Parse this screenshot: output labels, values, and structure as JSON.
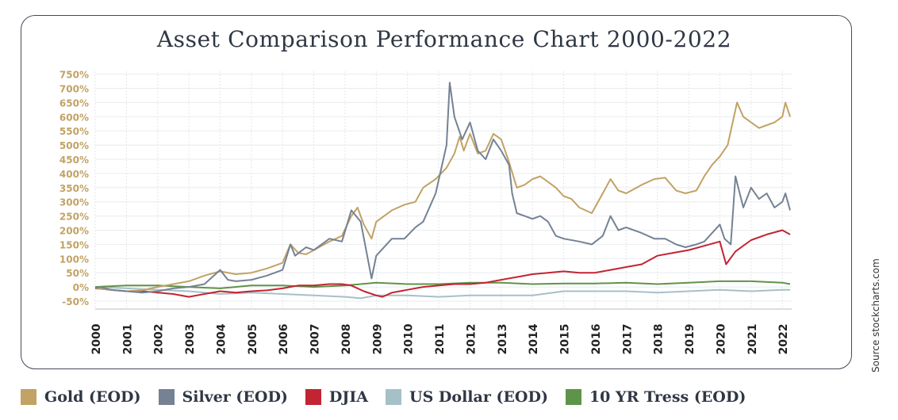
{
  "chart_data": {
    "type": "line",
    "title": "Asset Comparison Performance Chart 2000-2022",
    "source": "Source stockcharts.com",
    "xlabel": "",
    "ylabel": "",
    "xlim": [
      2000,
      2022.3
    ],
    "ylim": [
      -50,
      760
    ],
    "grid": true,
    "legend_position": "bottom",
    "x_ticks": [
      "2000",
      "2001",
      "2002",
      "2003",
      "2004",
      "2005",
      "2006",
      "2007",
      "2008",
      "2009",
      "2010",
      "2011",
      "2012",
      "2013",
      "2014",
      "2015",
      "2016",
      "2017",
      "2018",
      "2019",
      "2020",
      "2021",
      "2022"
    ],
    "y_ticks": [
      "750%",
      "700%",
      "650%",
      "600%",
      "550%",
      "500%",
      "450%",
      "400%",
      "350%",
      "300%",
      "250%",
      "200%",
      "150%",
      "100%",
      "50%",
      "0%",
      "-50%"
    ],
    "y_tick_values": [
      750,
      700,
      650,
      600,
      550,
      500,
      450,
      400,
      350,
      300,
      250,
      200,
      150,
      100,
      50,
      0,
      -50
    ],
    "series": [
      {
        "name": "Gold (EOD)",
        "color": "#c2a265",
        "points": [
          [
            2000,
            -5
          ],
          [
            2000.5,
            -10
          ],
          [
            2001,
            -15
          ],
          [
            2001.5,
            -12
          ],
          [
            2002,
            0
          ],
          [
            2002.5,
            10
          ],
          [
            2003,
            20
          ],
          [
            2003.5,
            40
          ],
          [
            2004,
            55
          ],
          [
            2004.5,
            45
          ],
          [
            2005,
            50
          ],
          [
            2005.5,
            65
          ],
          [
            2006,
            85
          ],
          [
            2006.25,
            150
          ],
          [
            2006.5,
            120
          ],
          [
            2006.75,
            115
          ],
          [
            2007,
            130
          ],
          [
            2007.5,
            160
          ],
          [
            2007.9,
            180
          ],
          [
            2008.2,
            250
          ],
          [
            2008.4,
            280
          ],
          [
            2008.6,
            220
          ],
          [
            2008.85,
            170
          ],
          [
            2009,
            230
          ],
          [
            2009.5,
            270
          ],
          [
            2009.9,
            290
          ],
          [
            2010.25,
            300
          ],
          [
            2010.5,
            350
          ],
          [
            2010.9,
            380
          ],
          [
            2011.25,
            420
          ],
          [
            2011.5,
            470
          ],
          [
            2011.67,
            530
          ],
          [
            2011.8,
            480
          ],
          [
            2012,
            540
          ],
          [
            2012.25,
            470
          ],
          [
            2012.5,
            480
          ],
          [
            2012.75,
            540
          ],
          [
            2013,
            520
          ],
          [
            2013.25,
            440
          ],
          [
            2013.5,
            350
          ],
          [
            2013.75,
            360
          ],
          [
            2014,
            380
          ],
          [
            2014.25,
            390
          ],
          [
            2014.5,
            370
          ],
          [
            2014.75,
            350
          ],
          [
            2015,
            320
          ],
          [
            2015.25,
            310
          ],
          [
            2015.5,
            280
          ],
          [
            2015.9,
            260
          ],
          [
            2016.25,
            330
          ],
          [
            2016.5,
            380
          ],
          [
            2016.75,
            340
          ],
          [
            2017,
            330
          ],
          [
            2017.5,
            360
          ],
          [
            2017.9,
            380
          ],
          [
            2018.25,
            385
          ],
          [
            2018.6,
            340
          ],
          [
            2018.9,
            330
          ],
          [
            2019.25,
            340
          ],
          [
            2019.5,
            390
          ],
          [
            2019.75,
            430
          ],
          [
            2020,
            460
          ],
          [
            2020.25,
            500
          ],
          [
            2020.55,
            650
          ],
          [
            2020.75,
            600
          ],
          [
            2021,
            580
          ],
          [
            2021.25,
            560
          ],
          [
            2021.5,
            570
          ],
          [
            2021.75,
            580
          ],
          [
            2022,
            600
          ],
          [
            2022.1,
            650
          ],
          [
            2022.25,
            600
          ]
        ]
      },
      {
        "name": "Silver (EOD)",
        "color": "#758294",
        "points": [
          [
            2000,
            -5
          ],
          [
            2000.15,
            0
          ],
          [
            2000.5,
            -10
          ],
          [
            2001,
            -15
          ],
          [
            2001.5,
            -20
          ],
          [
            2002,
            -15
          ],
          [
            2002.5,
            -5
          ],
          [
            2003,
            0
          ],
          [
            2003.5,
            10
          ],
          [
            2004,
            60
          ],
          [
            2004.25,
            25
          ],
          [
            2004.5,
            20
          ],
          [
            2005,
            25
          ],
          [
            2005.5,
            40
          ],
          [
            2006,
            60
          ],
          [
            2006.25,
            150
          ],
          [
            2006.4,
            110
          ],
          [
            2006.75,
            140
          ],
          [
            2007,
            130
          ],
          [
            2007.5,
            170
          ],
          [
            2007.9,
            160
          ],
          [
            2008.2,
            270
          ],
          [
            2008.5,
            230
          ],
          [
            2008.85,
            30
          ],
          [
            2009,
            110
          ],
          [
            2009.5,
            170
          ],
          [
            2009.9,
            170
          ],
          [
            2010.25,
            210
          ],
          [
            2010.5,
            230
          ],
          [
            2010.9,
            330
          ],
          [
            2011.25,
            500
          ],
          [
            2011.35,
            720
          ],
          [
            2011.5,
            600
          ],
          [
            2011.75,
            520
          ],
          [
            2012,
            580
          ],
          [
            2012.25,
            480
          ],
          [
            2012.5,
            450
          ],
          [
            2012.75,
            520
          ],
          [
            2013,
            480
          ],
          [
            2013.25,
            430
          ],
          [
            2013.35,
            330
          ],
          [
            2013.5,
            260
          ],
          [
            2013.75,
            250
          ],
          [
            2014,
            240
          ],
          [
            2014.25,
            250
          ],
          [
            2014.5,
            230
          ],
          [
            2014.75,
            180
          ],
          [
            2015,
            170
          ],
          [
            2015.5,
            160
          ],
          [
            2015.9,
            150
          ],
          [
            2016.25,
            180
          ],
          [
            2016.5,
            250
          ],
          [
            2016.75,
            200
          ],
          [
            2017,
            210
          ],
          [
            2017.5,
            190
          ],
          [
            2017.9,
            170
          ],
          [
            2018.25,
            170
          ],
          [
            2018.6,
            150
          ],
          [
            2018.9,
            140
          ],
          [
            2019.25,
            150
          ],
          [
            2019.5,
            160
          ],
          [
            2019.75,
            190
          ],
          [
            2020,
            220
          ],
          [
            2020.15,
            170
          ],
          [
            2020.35,
            150
          ],
          [
            2020.5,
            390
          ],
          [
            2020.75,
            280
          ],
          [
            2021,
            350
          ],
          [
            2021.25,
            310
          ],
          [
            2021.5,
            330
          ],
          [
            2021.75,
            280
          ],
          [
            2022,
            300
          ],
          [
            2022.1,
            330
          ],
          [
            2022.25,
            270
          ]
        ]
      },
      {
        "name": "DJIA",
        "color": "#c22432",
        "points": [
          [
            2000,
            -5
          ],
          [
            2000.5,
            -10
          ],
          [
            2001,
            -15
          ],
          [
            2001.5,
            -15
          ],
          [
            2002,
            -20
          ],
          [
            2002.5,
            -25
          ],
          [
            2003,
            -35
          ],
          [
            2003.5,
            -25
          ],
          [
            2004,
            -15
          ],
          [
            2004.5,
            -20
          ],
          [
            2005,
            -15
          ],
          [
            2005.5,
            -12
          ],
          [
            2006,
            -5
          ],
          [
            2006.5,
            5
          ],
          [
            2007,
            5
          ],
          [
            2007.5,
            10
          ],
          [
            2007.9,
            10
          ],
          [
            2008.2,
            5
          ],
          [
            2008.6,
            -15
          ],
          [
            2009,
            -30
          ],
          [
            2009.2,
            -35
          ],
          [
            2009.5,
            -20
          ],
          [
            2010,
            -10
          ],
          [
            2010.5,
            0
          ],
          [
            2011,
            5
          ],
          [
            2011.5,
            10
          ],
          [
            2012,
            10
          ],
          [
            2012.5,
            15
          ],
          [
            2013,
            25
          ],
          [
            2013.5,
            35
          ],
          [
            2014,
            45
          ],
          [
            2014.5,
            50
          ],
          [
            2015,
            55
          ],
          [
            2015.5,
            50
          ],
          [
            2016,
            50
          ],
          [
            2016.5,
            60
          ],
          [
            2017,
            70
          ],
          [
            2017.5,
            80
          ],
          [
            2018,
            110
          ],
          [
            2018.5,
            120
          ],
          [
            2019,
            130
          ],
          [
            2019.5,
            145
          ],
          [
            2020,
            160
          ],
          [
            2020.2,
            80
          ],
          [
            2020.5,
            125
          ],
          [
            2021,
            165
          ],
          [
            2021.5,
            185
          ],
          [
            2022,
            200
          ],
          [
            2022.25,
            185
          ]
        ]
      },
      {
        "name": "US Dollar (EOD)",
        "color": "#a6c0c8",
        "points": [
          [
            2000,
            0
          ],
          [
            2001,
            -5
          ],
          [
            2002,
            -10
          ],
          [
            2003,
            -15
          ],
          [
            2004,
            -25
          ],
          [
            2005,
            -20
          ],
          [
            2006,
            -25
          ],
          [
            2007,
            -30
          ],
          [
            2008,
            -35
          ],
          [
            2008.5,
            -40
          ],
          [
            2009,
            -30
          ],
          [
            2010,
            -30
          ],
          [
            2011,
            -35
          ],
          [
            2012,
            -30
          ],
          [
            2013,
            -30
          ],
          [
            2014,
            -30
          ],
          [
            2015,
            -15
          ],
          [
            2016,
            -15
          ],
          [
            2017,
            -15
          ],
          [
            2018,
            -20
          ],
          [
            2019,
            -15
          ],
          [
            2020,
            -10
          ],
          [
            2021,
            -15
          ],
          [
            2022,
            -10
          ],
          [
            2022.25,
            -10
          ]
        ]
      },
      {
        "name": "10 YR Tress (EOD)",
        "color": "#5e9449",
        "points": [
          [
            2000,
            0
          ],
          [
            2001,
            5
          ],
          [
            2002,
            5
          ],
          [
            2003,
            0
          ],
          [
            2004,
            -5
          ],
          [
            2005,
            5
          ],
          [
            2006,
            5
          ],
          [
            2007,
            0
          ],
          [
            2008,
            5
          ],
          [
            2009,
            15
          ],
          [
            2010,
            10
          ],
          [
            2011,
            10
          ],
          [
            2012,
            15
          ],
          [
            2013,
            15
          ],
          [
            2014,
            10
          ],
          [
            2015,
            12
          ],
          [
            2016,
            12
          ],
          [
            2017,
            15
          ],
          [
            2018,
            10
          ],
          [
            2019,
            15
          ],
          [
            2020,
            20
          ],
          [
            2021,
            20
          ],
          [
            2022,
            15
          ],
          [
            2022.25,
            10
          ]
        ]
      }
    ]
  }
}
